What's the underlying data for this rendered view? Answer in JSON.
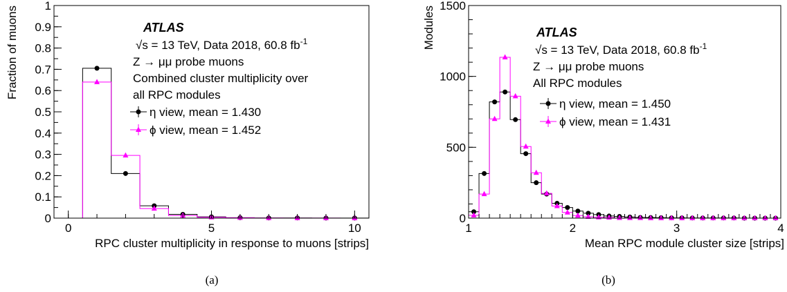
{
  "chart_data": [
    {
      "type": "histogram",
      "panel_label": "(a)",
      "xlabel": "RPC cluster multiplicity in response to muons [strips]",
      "ylabel": "Fraction of muons",
      "xlim": [
        -0.5,
        10.5
      ],
      "ylim": [
        0,
        1
      ],
      "xticks": [
        0,
        5,
        10
      ],
      "yticks": [
        0,
        0.1,
        0.2,
        0.3,
        0.4,
        0.5,
        0.6,
        0.7,
        0.8,
        0.9,
        1
      ],
      "yticklabels": [
        "0",
        "0.1",
        "0.2",
        "0.3",
        "0.4",
        "0.5",
        "0.6",
        "0.7",
        "0.8",
        "0.9",
        "1"
      ],
      "atlas": "ATLAS",
      "annotation_lines": [
        "√s = 13 TeV, Data 2018, 60.8 fb",
        "Z → μμ probe muons",
        "Combined cluster multiplicity over",
        "all RPC modules"
      ],
      "lumi_sup": "-1",
      "bin_edges": [
        -0.5,
        0.5,
        1.5,
        2.5,
        3.5,
        4.5,
        5.5,
        6.5,
        7.5,
        8.5,
        9.5,
        10.5
      ],
      "series": [
        {
          "name": "η view, mean = 1.430",
          "color": "#000000",
          "marker": "circle",
          "x": [
            0,
            1,
            2,
            3,
            4,
            5,
            6,
            7,
            8,
            9,
            10
          ],
          "values": [
            0,
            0.705,
            0.21,
            0.058,
            0.018,
            0.006,
            0.002,
            0.001,
            0.001,
            0.0005,
            0.0003
          ]
        },
        {
          "name": "ϕ view, mean = 1.452",
          "color": "#ff00ff",
          "marker": "triangle",
          "x": [
            0,
            1,
            2,
            3,
            4,
            5,
            6,
            7,
            8,
            9,
            10
          ],
          "values": [
            0,
            0.64,
            0.295,
            0.045,
            0.012,
            0.004,
            0.002,
            0.001,
            0.0005,
            0.0003,
            0.0002
          ]
        }
      ]
    },
    {
      "type": "histogram",
      "panel_label": "(b)",
      "xlabel": "Mean RPC module cluster size [strips]",
      "ylabel": "Modules",
      "xlim": [
        1,
        4
      ],
      "ylim": [
        0,
        1500
      ],
      "xticks": [
        1,
        2,
        3,
        4
      ],
      "yticks": [
        0,
        500,
        1000,
        1500
      ],
      "yticklabels": [
        "0",
        "500",
        "1000",
        "1500"
      ],
      "atlas": "ATLAS",
      "annotation_lines": [
        "√s = 13 TeV, Data 2018, 60.8 fb",
        "Z → μμ probe muons",
        "All RPC modules"
      ],
      "lumi_sup": "-1",
      "bin_width": 0.1,
      "series": [
        {
          "name": "η view, mean = 1.450",
          "color": "#000000",
          "marker": "circle",
          "x": [
            1.05,
            1.15,
            1.25,
            1.35,
            1.45,
            1.55,
            1.65,
            1.75,
            1.85,
            1.95,
            2.05,
            2.15,
            2.25,
            2.35,
            2.45,
            2.55,
            2.65,
            2.75,
            2.85,
            2.95,
            3.05,
            3.15,
            3.25,
            3.35,
            3.45,
            3.55,
            3.65,
            3.75,
            3.85,
            3.95
          ],
          "values": [
            45,
            315,
            820,
            890,
            695,
            455,
            250,
            170,
            105,
            75,
            50,
            35,
            25,
            15,
            12,
            8,
            5,
            4,
            3,
            2,
            2,
            1,
            1,
            1,
            1,
            1,
            0,
            0,
            0,
            0
          ]
        },
        {
          "name": "ϕ view, mean = 1.431",
          "color": "#ff00ff",
          "marker": "triangle",
          "x": [
            1.05,
            1.15,
            1.25,
            1.35,
            1.45,
            1.55,
            1.65,
            1.75,
            1.85,
            1.95,
            2.05,
            2.15,
            2.25,
            2.35,
            2.45,
            2.55,
            2.65,
            2.75,
            2.85,
            2.95,
            3.05,
            3.15,
            3.25,
            3.35,
            3.45,
            3.55,
            3.65,
            3.75,
            3.85,
            3.95
          ],
          "values": [
            20,
            170,
            700,
            1135,
            860,
            505,
            320,
            175,
            85,
            40,
            18,
            10,
            6,
            4,
            2,
            1,
            1,
            0,
            0,
            0,
            0,
            0,
            0,
            0,
            0,
            0,
            0,
            0,
            0,
            0
          ]
        }
      ]
    }
  ]
}
